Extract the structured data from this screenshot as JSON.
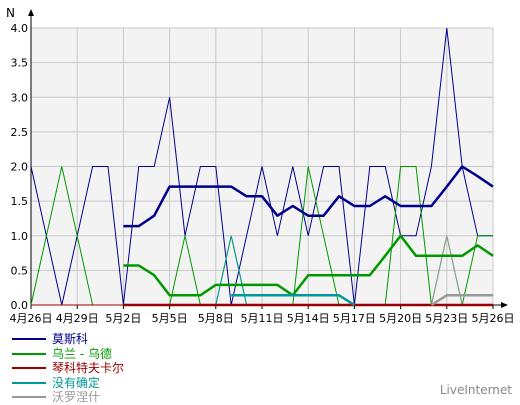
{
  "chart_data": {
    "type": "line",
    "ylabel": "N",
    "ylim": [
      0,
      4
    ],
    "y_ticks": [
      "0.0",
      "0.5",
      "1.0",
      "1.5",
      "2.0",
      "2.5",
      "3.0",
      "3.5",
      "4.0"
    ],
    "x_ticks": [
      "4月26日",
      "4月29日",
      "5月2日",
      "5月5日",
      "5月8日",
      "5月11日",
      "5月14日",
      "5月17日",
      "5月20日",
      "5月23日",
      "5月26日"
    ],
    "grid": true,
    "legend_position": "bottom-left",
    "series": [
      {
        "name": "莫斯科",
        "color": "#00008b",
        "thin": [
          2,
          1,
          0,
          1,
          2,
          2,
          0,
          2,
          2,
          3,
          1,
          2,
          2,
          0,
          1,
          2,
          1,
          2,
          1,
          2,
          2,
          0,
          2,
          2,
          1,
          1,
          2,
          4,
          2,
          1,
          1
        ],
        "thick": [
          null,
          null,
          null,
          null,
          null,
          null,
          1.14,
          1.14,
          1.29,
          1.71,
          1.71,
          1.71,
          1.71,
          1.71,
          1.57,
          1.57,
          1.29,
          1.43,
          1.29,
          1.29,
          1.57,
          1.43,
          1.43,
          1.57,
          1.43,
          1.43,
          1.43,
          1.71,
          2,
          1.86,
          1.71
        ]
      },
      {
        "name": "乌兰 - 乌德",
        "color": "#009900",
        "thin": [
          0,
          1,
          2,
          1,
          0,
          0,
          0,
          0,
          0,
          0,
          1,
          0,
          0,
          1,
          0,
          0,
          0,
          0,
          2,
          1,
          0,
          0,
          0,
          0,
          2,
          2,
          0,
          1,
          0,
          1,
          1
        ],
        "thick": [
          null,
          null,
          null,
          null,
          null,
          null,
          0.57,
          0.57,
          0.43,
          0.14,
          0.14,
          0.14,
          0.29,
          0.29,
          0.29,
          0.29,
          0.29,
          0.14,
          0.43,
          0.43,
          0.43,
          0.43,
          0.43,
          0.71,
          1,
          0.71,
          0.71,
          0.71,
          0.71,
          0.86,
          0.71
        ]
      },
      {
        "name": "琴科特夫卡尔",
        "color": "#990000",
        "thin": [
          0,
          0,
          0,
          0,
          0,
          0,
          0,
          0,
          0,
          0,
          0,
          0,
          0,
          0,
          0,
          0,
          0,
          0,
          0,
          0,
          0,
          0,
          0,
          0,
          0,
          0,
          0,
          0,
          0,
          0,
          0
        ],
        "thick": [
          null,
          null,
          null,
          null,
          null,
          null,
          0,
          0,
          0,
          0,
          0,
          0,
          0,
          0,
          0,
          0,
          0,
          0,
          0,
          0,
          0,
          0,
          0,
          0,
          0,
          0,
          0,
          0,
          0,
          0,
          0
        ]
      },
      {
        "name": "没有确定",
        "color": "#009999",
        "thin": [
          null,
          null,
          null,
          null,
          null,
          null,
          null,
          null,
          null,
          null,
          null,
          null,
          0,
          1,
          0,
          0,
          0,
          0,
          0,
          0,
          0,
          0,
          null,
          null,
          null,
          null,
          null,
          null,
          null,
          null,
          null
        ],
        "thick": [
          null,
          null,
          null,
          null,
          null,
          null,
          null,
          null,
          null,
          null,
          null,
          null,
          null,
          0.14,
          0.14,
          0.14,
          0.14,
          0.14,
          0.14,
          0.14,
          0.14,
          0,
          null,
          null,
          null,
          null,
          null,
          null,
          null,
          null,
          null
        ]
      },
      {
        "name": "沃罗涅什",
        "color": "#999999",
        "thin": [
          null,
          null,
          null,
          null,
          null,
          null,
          null,
          null,
          null,
          null,
          null,
          null,
          null,
          null,
          null,
          null,
          null,
          null,
          null,
          null,
          null,
          null,
          null,
          null,
          null,
          null,
          0,
          1,
          0,
          0,
          0
        ],
        "thick": [
          null,
          null,
          null,
          null,
          null,
          null,
          null,
          null,
          null,
          null,
          null,
          null,
          null,
          null,
          null,
          null,
          null,
          null,
          null,
          null,
          null,
          null,
          null,
          null,
          null,
          null,
          0,
          0.14,
          0.14,
          0.14,
          0.14
        ]
      }
    ]
  },
  "watermark": "LiveInternet"
}
